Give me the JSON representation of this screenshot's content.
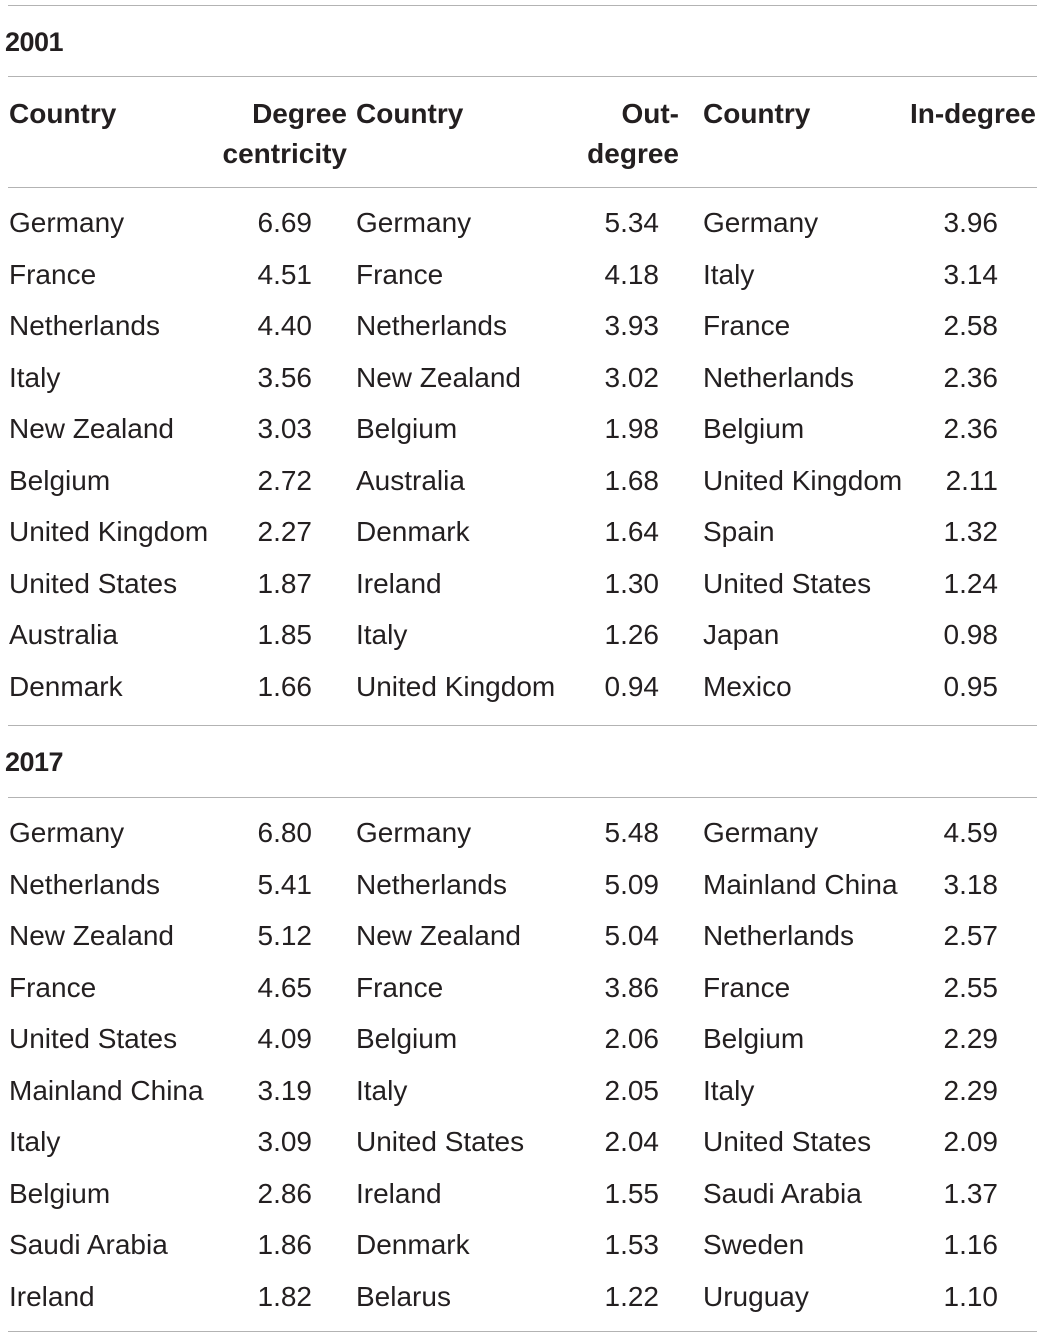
{
  "headers": {
    "country1": "Country",
    "degree_centricity_line1": "Degree",
    "degree_centricity_line2": "centricity",
    "country2": "Country",
    "out_degree_line1": "Out-",
    "out_degree_line2": "degree",
    "country3": "Country",
    "in_degree": "In-degree"
  },
  "sections": [
    {
      "title": "2001",
      "rows": [
        {
          "c1": "Germany",
          "v1": "6.69",
          "c2": "Germany",
          "v2": "5.34",
          "c3": "Germany",
          "v3": "3.96"
        },
        {
          "c1": "France",
          "v1": "4.51",
          "c2": "France",
          "v2": "4.18",
          "c3": "Italy",
          "v3": "3.14"
        },
        {
          "c1": "Netherlands",
          "v1": "4.40",
          "c2": "Netherlands",
          "v2": "3.93",
          "c3": "France",
          "v3": "2.58"
        },
        {
          "c1": "Italy",
          "v1": "3.56",
          "c2": "New Zealand",
          "v2": "3.02",
          "c3": "Netherlands",
          "v3": "2.36"
        },
        {
          "c1": "New Zealand",
          "v1": "3.03",
          "c2": "Belgium",
          "v2": "1.98",
          "c3": "Belgium",
          "v3": "2.36"
        },
        {
          "c1": "Belgium",
          "v1": "2.72",
          "c2": "Australia",
          "v2": "1.68",
          "c3": "United Kingdom",
          "v3": "2.11"
        },
        {
          "c1": "United Kingdom",
          "v1": "2.27",
          "c2": "Denmark",
          "v2": "1.64",
          "c3": "Spain",
          "v3": "1.32"
        },
        {
          "c1": "United States",
          "v1": "1.87",
          "c2": "Ireland",
          "v2": "1.30",
          "c3": "United States",
          "v3": "1.24"
        },
        {
          "c1": "Australia",
          "v1": "1.85",
          "c2": "Italy",
          "v2": "1.26",
          "c3": "Japan",
          "v3": "0.98"
        },
        {
          "c1": "Denmark",
          "v1": "1.66",
          "c2": "United Kingdom",
          "v2": "0.94",
          "c3": "Mexico",
          "v3": "0.95"
        }
      ]
    },
    {
      "title": "2017",
      "rows": [
        {
          "c1": "Germany",
          "v1": "6.80",
          "c2": "Germany",
          "v2": "5.48",
          "c3": "Germany",
          "v3": "4.59"
        },
        {
          "c1": "Netherlands",
          "v1": "5.41",
          "c2": "Netherlands",
          "v2": "5.09",
          "c3": "Mainland China",
          "v3": "3.18"
        },
        {
          "c1": "New Zealand",
          "v1": "5.12",
          "c2": "New Zealand",
          "v2": "5.04",
          "c3": "Netherlands",
          "v3": "2.57"
        },
        {
          "c1": "France",
          "v1": "4.65",
          "c2": "France",
          "v2": "3.86",
          "c3": "France",
          "v3": "2.55"
        },
        {
          "c1": "United States",
          "v1": "4.09",
          "c2": "Belgium",
          "v2": "2.06",
          "c3": "Belgium",
          "v3": "2.29"
        },
        {
          "c1": "Mainland China",
          "v1": "3.19",
          "c2": "Italy",
          "v2": "2.05",
          "c3": "Italy",
          "v3": "2.29"
        },
        {
          "c1": "Italy",
          "v1": "3.09",
          "c2": "United States",
          "v2": "2.04",
          "c3": "United States",
          "v3": "2.09"
        },
        {
          "c1": "Belgium",
          "v1": "2.86",
          "c2": "Ireland",
          "v2": "1.55",
          "c3": "Saudi Arabia",
          "v3": "1.37"
        },
        {
          "c1": "Saudi Arabia",
          "v1": "1.86",
          "c2": "Denmark",
          "v2": "1.53",
          "c3": "Sweden",
          "v3": "1.16"
        },
        {
          "c1": "Ireland",
          "v1": "1.82",
          "c2": "Belarus",
          "v2": "1.22",
          "c3": "Uruguay",
          "v3": "1.10"
        }
      ]
    }
  ]
}
